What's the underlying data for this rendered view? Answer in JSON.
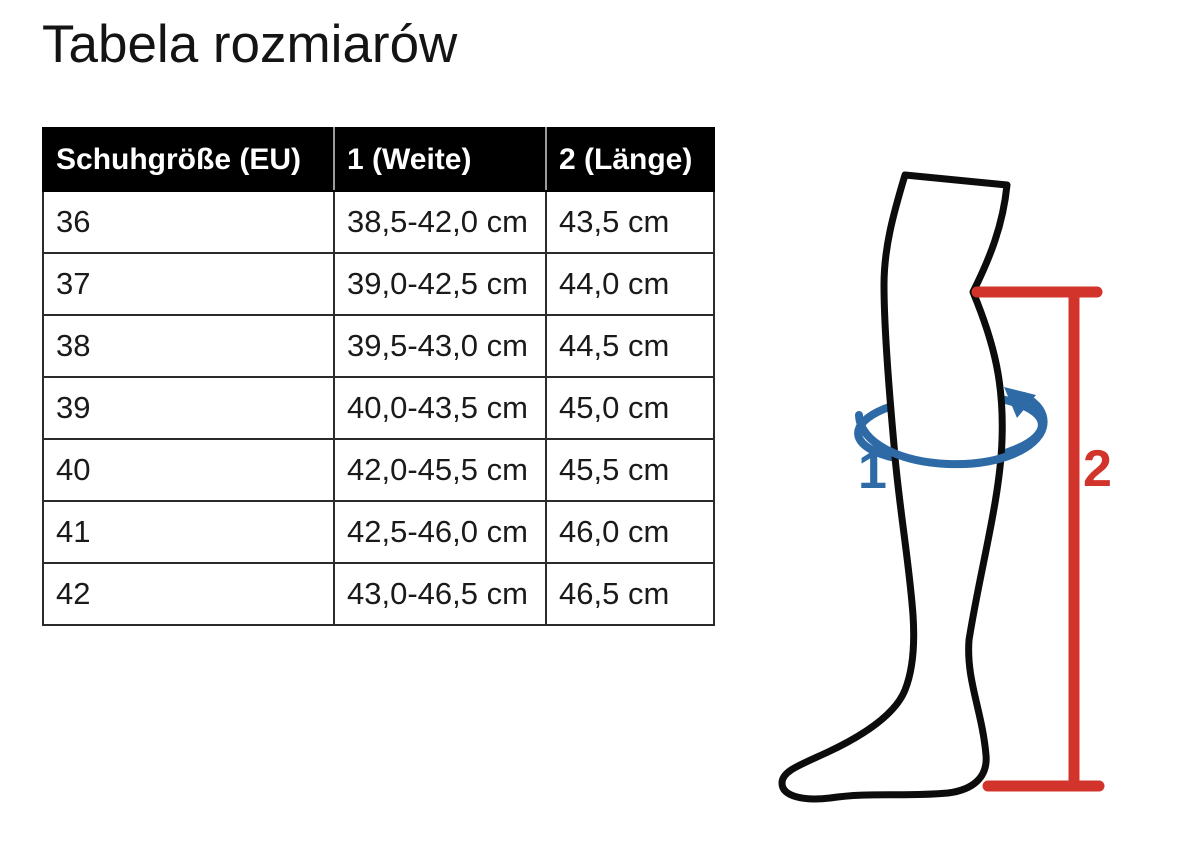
{
  "page": {
    "title": "Tabela rozmiarów"
  },
  "table": {
    "headers": [
      "Schuhgröße (EU)",
      "1 (Weite)",
      "2 (Länge)"
    ],
    "rows": [
      [
        "36",
        "38,5-42,0 cm",
        "43,5 cm"
      ],
      [
        "37",
        "39,0-42,5 cm",
        "44,0 cm"
      ],
      [
        "38",
        "39,5-43,0 cm",
        "44,5 cm"
      ],
      [
        "39",
        "40,0-43,5 cm",
        "45,0 cm"
      ],
      [
        "40",
        "42,0-45,5 cm",
        "45,5 cm"
      ],
      [
        "41",
        "42,5-46,0 cm",
        "46,0 cm"
      ],
      [
        "42",
        "43,0-46,5 cm",
        "46,5 cm"
      ]
    ]
  },
  "diagram": {
    "width_label": "1",
    "length_label": "2",
    "colors": {
      "blue": "#2e6ba6",
      "red": "#d2342c",
      "leg": "#0c0c0c"
    }
  }
}
